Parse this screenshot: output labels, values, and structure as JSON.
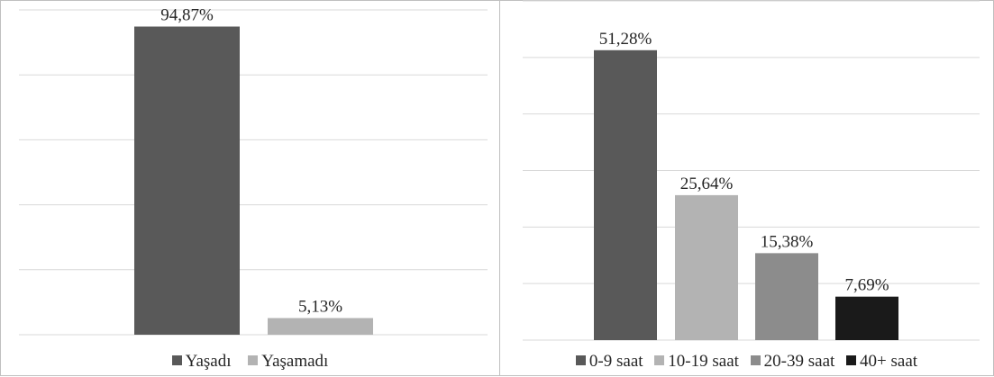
{
  "chart_data": [
    {
      "type": "bar",
      "categories": [
        "Yaşadı",
        "Yaşamadı"
      ],
      "values": [
        94.87,
        5.13
      ],
      "data_labels": [
        "94,87%",
        "5,13%"
      ],
      "colors": [
        "#595959",
        "#b3b3b3"
      ],
      "ylim": [
        0,
        100
      ],
      "grid": true,
      "legend": "bottom",
      "legend_entries": [
        "Yaşadı",
        "Yaşamadı"
      ]
    },
    {
      "type": "bar",
      "categories": [
        "0-9 saat",
        "10-19 saat",
        "20-39 saat",
        "40+ saat"
      ],
      "values": [
        51.28,
        25.64,
        15.38,
        7.69
      ],
      "data_labels": [
        "51,28%",
        "25,64%",
        "15,38%",
        "7,69%"
      ],
      "colors": [
        "#595959",
        "#b3b3b3",
        "#8c8c8c",
        "#1a1a1a"
      ],
      "ylim": [
        0,
        60
      ],
      "grid": true,
      "legend": "bottom",
      "legend_entries": [
        "0-9 saat",
        "10-19 saat",
        "20-39 saat",
        "40+ saat"
      ]
    }
  ]
}
